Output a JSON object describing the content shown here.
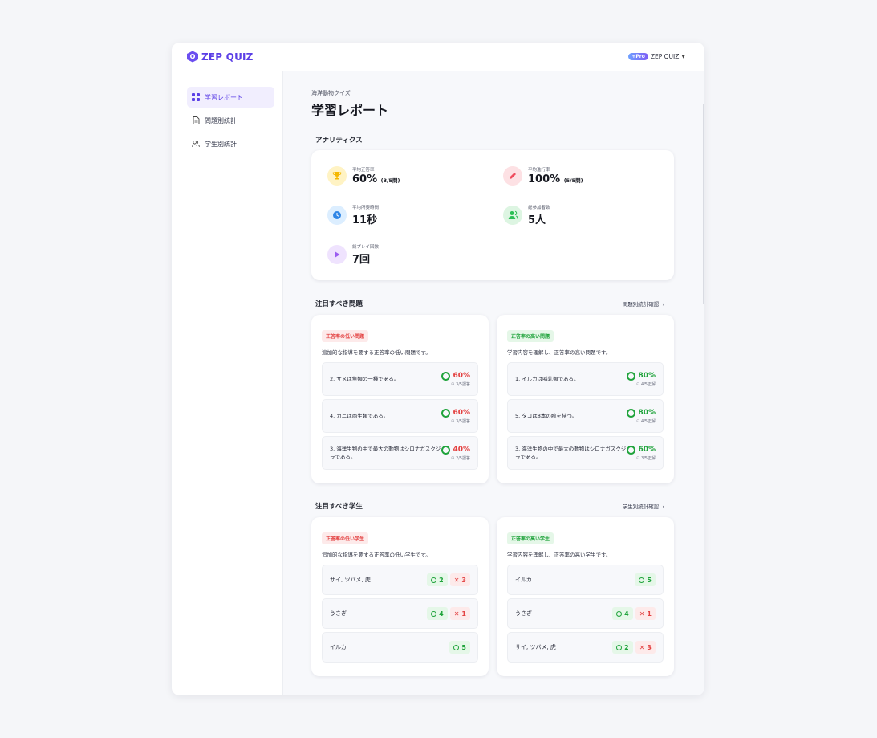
{
  "brand": {
    "name": "ZEP QUIZ",
    "logo_letter": "Q"
  },
  "account": {
    "badge": "Pro",
    "name": "ZEP QUIZ"
  },
  "sidebar": {
    "items": [
      {
        "label": "学習レポート",
        "icon": "grid-icon",
        "active": true
      },
      {
        "label": "問題別統計",
        "icon": "document-icon",
        "active": false
      },
      {
        "label": "学生別統計",
        "icon": "users-icon",
        "active": false
      }
    ]
  },
  "header": {
    "subtitle": "海洋動物クイズ",
    "title": "学習レポート"
  },
  "analytics": {
    "title": "アナリティクス",
    "metrics": [
      {
        "label": "平均正答率",
        "value": "60%",
        "detail": "(3/5問)",
        "icon": "trophy-icon",
        "color": "#f5b800"
      },
      {
        "label": "平均進行率",
        "value": "100%",
        "detail": "(5/5問)",
        "icon": "pencil-icon",
        "color": "#ef4d5e"
      },
      {
        "label": "平均所要時間",
        "value": "11秒",
        "detail": "",
        "icon": "clock-icon",
        "color": "#2f86e6"
      },
      {
        "label": "総参加者数",
        "value": "5人",
        "detail": "",
        "icon": "users-icon",
        "color": "#2bbf55"
      },
      {
        "label": "総プレイ回数",
        "value": "7回",
        "detail": "",
        "icon": "play-icon",
        "color": "#9b5cf0"
      }
    ]
  },
  "questions_section": {
    "title": "注目すべき問題",
    "link": "問題別統計確認",
    "low": {
      "tag": "正答率の低い問題",
      "desc": "追加的な指導を要する正答率の低い問題です。",
      "items": [
        {
          "text": "2. サメは魚類の一種である。",
          "pct": "60%",
          "count": "3/5誤答"
        },
        {
          "text": "4. カニは両生類である。",
          "pct": "60%",
          "count": "3/5誤答"
        },
        {
          "text": "3. 海洋生物の中で最大の動物はシロナガスクジラである。",
          "pct": "40%",
          "count": "2/5誤答"
        }
      ]
    },
    "high": {
      "tag": "正答率の高い問題",
      "desc": "学習内容を理解し、正答率の高い問題です。",
      "items": [
        {
          "text": "1. イルカは哺乳類である。",
          "pct": "80%",
          "count": "4/5正解"
        },
        {
          "text": "5. タコは8本の腕を持つ。",
          "pct": "80%",
          "count": "4/5正解"
        },
        {
          "text": "3. 海洋生物の中で最大の動物はシロナガスクジラである。",
          "pct": "60%",
          "count": "3/5正解"
        }
      ]
    }
  },
  "students_section": {
    "title": "注目すべき学生",
    "link": "学生別統計確認",
    "low": {
      "tag": "正答率の低い学生",
      "desc": "追加的な指導を要する正答率の低い学生です。",
      "items": [
        {
          "name": "サイ, ツバメ, 虎",
          "correct": "2",
          "wrong": "3"
        },
        {
          "name": "うさぎ",
          "correct": "4",
          "wrong": "1"
        },
        {
          "name": "イルカ",
          "correct": "5",
          "wrong": ""
        }
      ]
    },
    "high": {
      "tag": "正答率の高い学生",
      "desc": "学習内容を理解し、正答率の高い学生です。",
      "items": [
        {
          "name": "イルカ",
          "correct": "5",
          "wrong": ""
        },
        {
          "name": "うさぎ",
          "correct": "4",
          "wrong": "1"
        },
        {
          "name": "サイ, ツバメ, 虎",
          "correct": "2",
          "wrong": "3"
        }
      ]
    }
  }
}
